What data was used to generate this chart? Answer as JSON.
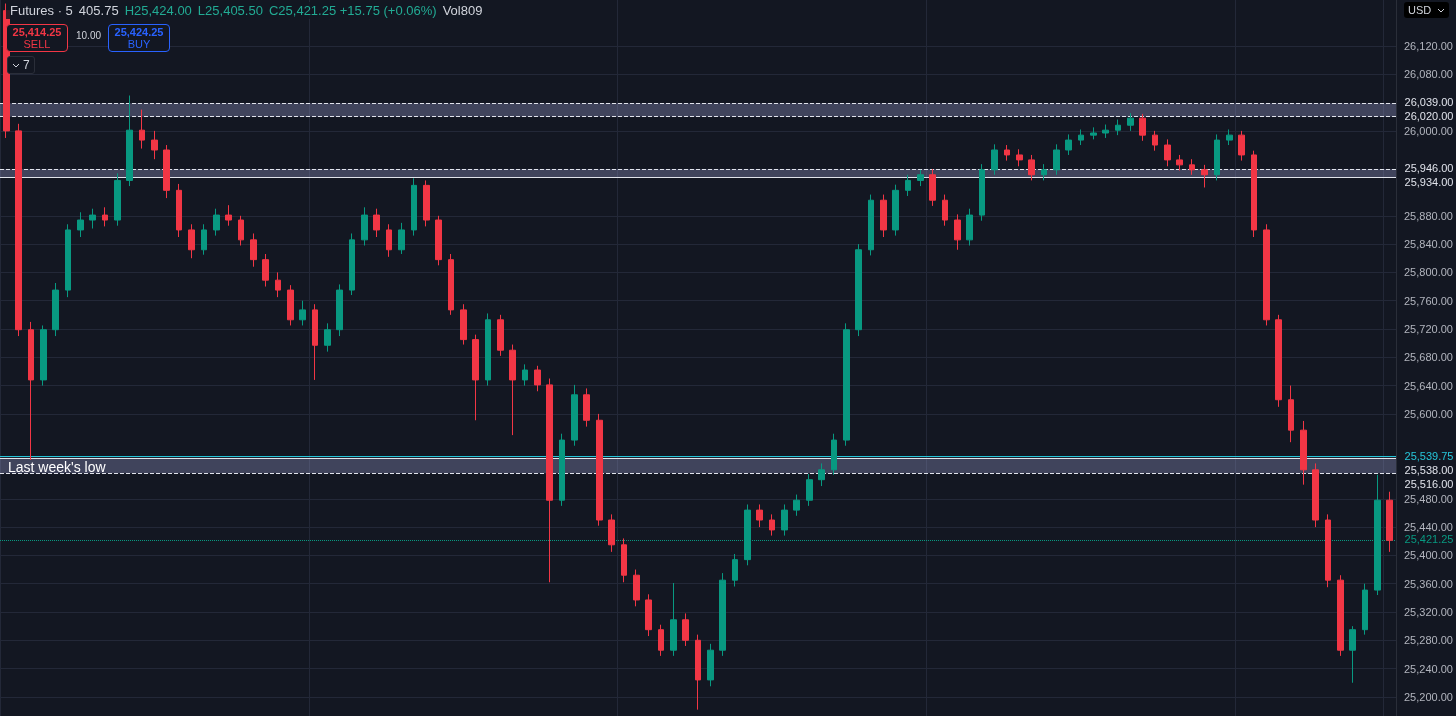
{
  "chart_data": {
    "type": "candlestick",
    "title": "Futures · 5",
    "annotations": [
      "405.75",
      "H25,424.00",
      "L25,405.50",
      "C25,421.25 +15.75 (+0.06%)",
      "Vol809",
      "25,414.25",
      "SELL",
      "10.00",
      "25,424.25",
      "BUY",
      "7",
      "USD",
      {
        "text": "Last week's low",
        "y": 25539.75
      }
    ],
    "categories": [
      null,
      null,
      null,
      null,
      null,
      null,
      null,
      null,
      null,
      null,
      null,
      null,
      null,
      null,
      null,
      null,
      null,
      null,
      null,
      null,
      null,
      null,
      null,
      null,
      null,
      null,
      null,
      null,
      null,
      null,
      null,
      null,
      null,
      null,
      null,
      null,
      null,
      null,
      null,
      null,
      null,
      null,
      null,
      null,
      null,
      null,
      null,
      null,
      null,
      null,
      null,
      null,
      null,
      null,
      null,
      null,
      null,
      null,
      null,
      null,
      null,
      null,
      null,
      null,
      null,
      null,
      null,
      null,
      null,
      null,
      null,
      null,
      null,
      null,
      null,
      null,
      null,
      null,
      null,
      null,
      null,
      null,
      null,
      null,
      null,
      null,
      null,
      null,
      null,
      null,
      null,
      null,
      null,
      null,
      null,
      null,
      null,
      null,
      null,
      null,
      null,
      null,
      null,
      null,
      null,
      null,
      null,
      null,
      null,
      null,
      null,
      null,
      null
    ],
    "series": [
      {
        "colors": [
          "#f23645",
          "#f23645",
          "#f23645",
          "#089981",
          "#089981",
          "#089981",
          "#089981",
          "#089981",
          "#f23645",
          "#089981",
          "#089981",
          "#f23645",
          "#f23645",
          "#f23645",
          "#f23645",
          "#f23645",
          "#089981",
          "#089981",
          "#f23645",
          "#f23645",
          "#f23645",
          "#f23645",
          "#f23645",
          "#f23645",
          "#089981",
          "#f23645",
          "#089981",
          "#089981",
          "#089981",
          "#089981",
          "#f23645",
          "#f23645",
          "#089981",
          "#089981",
          "#f23645",
          "#f23645",
          "#f23645",
          "#f23645",
          "#f23645",
          "#089981",
          "#f23645",
          "#f23645",
          "#089981",
          "#f23645",
          "#f23645",
          "#089981",
          "#089981",
          "#f23645",
          "#f23645",
          "#f23645",
          "#f23645",
          "#f23645",
          "#f23645",
          "#f23645",
          "#089981",
          "#f23645",
          "#f23645",
          "#089981",
          "#089981",
          "#089981",
          "#089981",
          "#f23645",
          "#f23645",
          "#089981",
          "#089981",
          "#089981",
          "#089981",
          "#089981",
          "#089981",
          "#089981",
          "#089981",
          "#f23645",
          "#089981",
          "#089981",
          "#089981",
          "#f23645",
          "#f23645",
          "#f23645",
          "#089981",
          "#089981",
          "#089981",
          "#f23645",
          "#f23645",
          "#f23645",
          "#089981",
          "#089981",
          "#089981",
          "#089981",
          "#089981",
          "#089981",
          "#089981",
          "#089981",
          "#f23645",
          "#f23645",
          "#f23645",
          "#f23645",
          "#f23645",
          "#f23645",
          "#089981",
          "#089981",
          "#f23645",
          "#f23645",
          "#f23645",
          "#f23645",
          "#f23645",
          "#f23645",
          "#f23645",
          "#f23645",
          "#f23645",
          "#089981",
          "#089981",
          "#089981",
          "#f23645"
        ],
        "ohlc": [
          [
            26170,
            26180,
            25990,
            26000
          ],
          [
            26000,
            26010,
            25710,
            25719
          ],
          [
            25719,
            25730,
            25535,
            25648
          ],
          [
            25648,
            25725,
            25640,
            25719
          ],
          [
            25719,
            25785,
            25710,
            25775
          ],
          [
            25775,
            25868,
            25765,
            25860
          ],
          [
            25860,
            25885,
            25850,
            25874
          ],
          [
            25874,
            25890,
            25862,
            25881
          ],
          [
            25881,
            25892,
            25865,
            25874
          ],
          [
            25874,
            25940,
            25866,
            25930
          ],
          [
            25930,
            26050,
            25922,
            26001
          ],
          [
            26001,
            26030,
            25975,
            25987
          ],
          [
            25987,
            26000,
            25960,
            25973
          ],
          [
            25973,
            25980,
            25905,
            25916
          ],
          [
            25916,
            25925,
            25850,
            25860
          ],
          [
            25860,
            25868,
            25820,
            25832
          ],
          [
            25832,
            25868,
            25825,
            25860
          ],
          [
            25860,
            25890,
            25852,
            25881
          ],
          [
            25881,
            25895,
            25866,
            25874
          ],
          [
            25874,
            25880,
            25838,
            25846
          ],
          [
            25846,
            25855,
            25808,
            25818
          ],
          [
            25818,
            25826,
            25780,
            25789
          ],
          [
            25789,
            25800,
            25765,
            25775
          ],
          [
            25775,
            25782,
            25725,
            25733
          ],
          [
            25733,
            25760,
            25725,
            25747
          ],
          [
            25747,
            25755,
            25648,
            25697
          ],
          [
            25697,
            25728,
            25688,
            25719
          ],
          [
            25719,
            25783,
            25710,
            25775
          ],
          [
            25775,
            25855,
            25768,
            25846
          ],
          [
            25846,
            25892,
            25838,
            25881
          ],
          [
            25881,
            25890,
            25850,
            25860
          ],
          [
            25860,
            25868,
            25822,
            25832
          ],
          [
            25832,
            25870,
            25826,
            25860
          ],
          [
            25860,
            25933,
            25852,
            25923
          ],
          [
            25923,
            25930,
            25865,
            25874
          ],
          [
            25874,
            25880,
            25810,
            25818
          ],
          [
            25818,
            25826,
            25740,
            25747
          ],
          [
            25747,
            25755,
            25698,
            25705
          ],
          [
            25705,
            25712,
            25591,
            25648
          ],
          [
            25648,
            25742,
            25640,
            25733
          ],
          [
            25733,
            25740,
            25682,
            25690
          ],
          [
            25690,
            25698,
            25570,
            25648
          ],
          [
            25648,
            25670,
            25640,
            25662
          ],
          [
            25662,
            25668,
            25632,
            25641
          ],
          [
            25641,
            25650,
            25362,
            25478
          ],
          [
            25478,
            25572,
            25470,
            25563
          ],
          [
            25563,
            25641,
            25555,
            25627
          ],
          [
            25627,
            25636,
            25582,
            25591
          ],
          [
            25591,
            25600,
            25442,
            25450
          ],
          [
            25450,
            25458,
            25405,
            25415
          ],
          [
            25415,
            25424,
            25362,
            25372
          ],
          [
            25372,
            25380,
            25328,
            25337
          ],
          [
            25337,
            25345,
            25286,
            25295
          ],
          [
            25295,
            25302,
            25258,
            25266
          ],
          [
            25266,
            25361,
            25258,
            25309
          ],
          [
            25309,
            25318,
            25272,
            25280
          ],
          [
            25280,
            25288,
            25182,
            25224
          ],
          [
            25224,
            25275,
            25215,
            25266
          ],
          [
            25266,
            25375,
            25258,
            25365
          ],
          [
            25365,
            25402,
            25356,
            25394
          ],
          [
            25394,
            25472,
            25386,
            25464
          ],
          [
            25464,
            25472,
            25440,
            25450
          ],
          [
            25450,
            25458,
            25428,
            25436
          ],
          [
            25436,
            25472,
            25428,
            25464
          ],
          [
            25464,
            25486,
            25456,
            25478
          ],
          [
            25478,
            25515,
            25470,
            25507
          ],
          [
            25507,
            25530,
            25498,
            25521
          ],
          [
            25521,
            25572,
            25514,
            25563
          ],
          [
            25563,
            25728,
            25555,
            25719
          ],
          [
            25719,
            25840,
            25710,
            25832
          ],
          [
            25832,
            25910,
            25824,
            25902
          ],
          [
            25902,
            25910,
            25850,
            25860
          ],
          [
            25860,
            25924,
            25852,
            25916
          ],
          [
            25916,
            25938,
            25908,
            25930
          ],
          [
            25930,
            25945,
            25922,
            25938
          ],
          [
            25938,
            25946,
            25894,
            25902
          ],
          [
            25902,
            25910,
            25866,
            25874
          ],
          [
            25874,
            25882,
            25832,
            25846
          ],
          [
            25846,
            25890,
            25838,
            25881
          ],
          [
            25881,
            25953,
            25873,
            25945
          ],
          [
            25945,
            25981,
            25938,
            25973
          ],
          [
            25973,
            25980,
            25958,
            25966
          ],
          [
            25966,
            25974,
            25950,
            25959
          ],
          [
            25959,
            25966,
            25930,
            25938
          ],
          [
            25938,
            25953,
            25930,
            25945
          ],
          [
            25945,
            25981,
            25938,
            25973
          ],
          [
            25973,
            25995,
            25966,
            25987
          ],
          [
            25987,
            26002,
            25980,
            25994
          ],
          [
            25994,
            26005,
            25988,
            25997
          ],
          [
            25997,
            26009,
            25990,
            26001
          ],
          [
            26001,
            26016,
            25994,
            26008
          ],
          [
            26008,
            26025,
            26000,
            26018
          ],
          [
            26018,
            26024,
            25986,
            25994
          ],
          [
            25994,
            26000,
            25972,
            25980
          ],
          [
            25980,
            25988,
            25950,
            25959
          ],
          [
            25959,
            25966,
            25944,
            25952
          ],
          [
            25952,
            25960,
            25938,
            25945
          ],
          [
            25945,
            25952,
            25920,
            25938
          ],
          [
            25938,
            25995,
            25930,
            25987
          ],
          [
            25987,
            26002,
            25980,
            25994
          ],
          [
            25994,
            26000,
            25958,
            25966
          ],
          [
            25966,
            25972,
            25850,
            25860
          ],
          [
            25860,
            25868,
            25725,
            25733
          ],
          [
            25733,
            25740,
            25610,
            25620
          ],
          [
            25620,
            25640,
            25560,
            25577
          ],
          [
            25577,
            25590,
            25500,
            25521
          ],
          [
            25521,
            25530,
            25440,
            25450
          ],
          [
            25450,
            25458,
            25355,
            25365
          ],
          [
            25365,
            25372,
            25258,
            25266
          ],
          [
            25266,
            25300,
            25220,
            25295
          ],
          [
            25295,
            25360,
            25288,
            25351
          ],
          [
            25351,
            25514,
            25344,
            25478
          ],
          [
            25478,
            25490,
            25405,
            25421.25
          ]
        ]
      }
    ],
    "ylim": [
      25173,
      26185
    ],
    "yticks": [
      {
        "value": 25200,
        "label": "25,200.00"
      },
      {
        "value": 25240,
        "label": "25,240.00"
      },
      {
        "value": 25280,
        "label": "25,280.00"
      },
      {
        "value": 25320,
        "label": "25,320.00"
      },
      {
        "value": 25360,
        "label": "25,360.00"
      },
      {
        "value": 25400,
        "label": "25,400.00"
      },
      {
        "value": 25440,
        "label": "25,440.00"
      },
      {
        "value": 25480,
        "label": "25,480.00"
      },
      {
        "value": 25600,
        "label": "25,600.00"
      },
      {
        "value": 25640,
        "label": "25,640.00"
      },
      {
        "value": 25680,
        "label": "25,680.00"
      },
      {
        "value": 25720,
        "label": "25,720.00"
      },
      {
        "value": 25760,
        "label": "25,760.00"
      },
      {
        "value": 25800,
        "label": "25,800.00"
      },
      {
        "value": 25840,
        "label": "25,840.00"
      },
      {
        "value": 25880,
        "label": "25,880.00"
      },
      {
        "value": 26000,
        "label": "26,000.00"
      },
      {
        "value": 26080,
        "label": "26,080.00"
      },
      {
        "value": 26120,
        "label": "26,120.00"
      }
    ],
    "bands": [
      {
        "axis": "y",
        "from": 26020,
        "to": 26039,
        "color": "#9598c8"
      },
      {
        "axis": "y",
        "from": 25934,
        "to": 25946,
        "color": "#9598c8"
      },
      {
        "axis": "y",
        "from": 25516,
        "to": 25538,
        "color": "#9598c8"
      }
    ],
    "ref_lines": [
      {
        "axis": "y",
        "value": 26039,
        "label": "26,039.00",
        "color": "#e0e3eb",
        "line_style": "dashed"
      },
      {
        "axis": "y",
        "value": 26020,
        "label": "26,020.00",
        "color": "#e0e3eb",
        "line_style": "dashed"
      },
      {
        "axis": "y",
        "value": 25946,
        "label": "25,946.00",
        "color": "#e0e3eb",
        "line_style": "dashed"
      },
      {
        "axis": "y",
        "value": 25934,
        "label": "25,934.00",
        "color": "#e0e3eb",
        "line_style": "solid"
      },
      {
        "axis": "y",
        "value": 25539.75,
        "label": "25,539.75",
        "color": "#26c6da",
        "line_style": "solid"
      },
      {
        "axis": "y",
        "value": 25538,
        "label": "25,538.00",
        "color": "#e0e3eb",
        "line_style": "solid"
      },
      {
        "axis": "y",
        "value": 25516,
        "label": "25,516.00",
        "color": "#e0e3eb",
        "line_style": "dashed"
      },
      {
        "axis": "y",
        "value": 25421.25,
        "label": "25,421.25",
        "color": "#089981",
        "line_style": "dotted"
      }
    ],
    "grid": true,
    "tick_labels": "y"
  }
}
